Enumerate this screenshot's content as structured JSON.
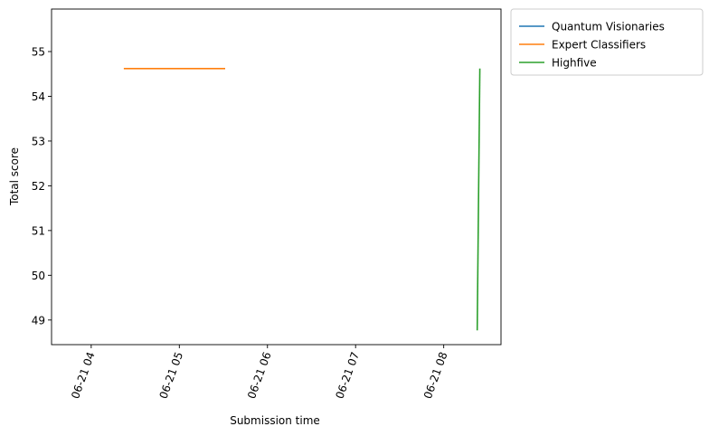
{
  "chart_data": {
    "type": "line",
    "xlabel": "Submission time",
    "ylabel": "Total score",
    "x_ticks": [
      "06-21 04",
      "06-21 05",
      "06-21 06",
      "06-21 07",
      "06-21 08"
    ],
    "x_tick_hours": [
      4,
      5,
      6,
      7,
      8
    ],
    "xlim_hours": [
      3.55,
      8.65
    ],
    "y_ticks": [
      49,
      50,
      51,
      52,
      53,
      54,
      55
    ],
    "ylim": [
      48.45,
      55.95
    ],
    "grid": false,
    "legend_position": "outside-top-right",
    "series": [
      {
        "name": "Quantum Visionaries",
        "color": "#1f77b4",
        "x_hours": [],
        "values": []
      },
      {
        "name": "Expert Classifiers",
        "color": "#ff7f0e",
        "x_hours": [
          4.37,
          5.52
        ],
        "values": [
          54.62,
          54.62
        ]
      },
      {
        "name": "Highfive",
        "color": "#2ca02c",
        "x_hours": [
          8.38,
          8.41
        ],
        "values": [
          48.77,
          54.62
        ]
      }
    ]
  }
}
